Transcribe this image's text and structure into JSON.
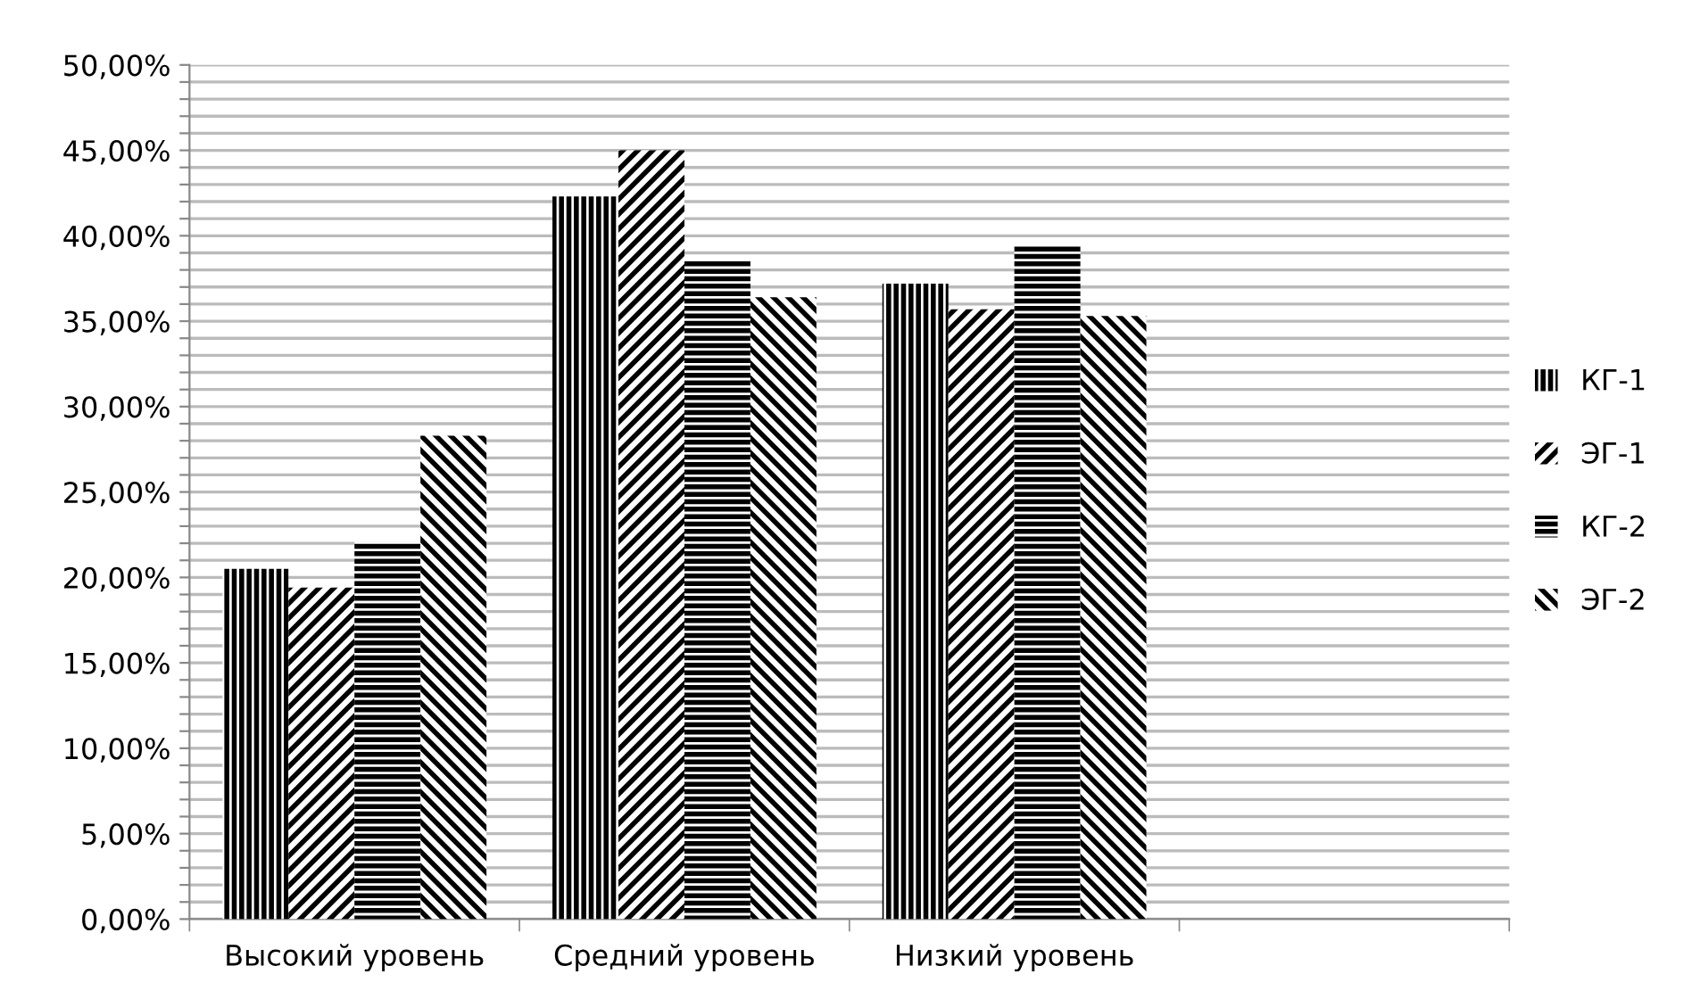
{
  "chart_data": {
    "type": "bar",
    "categories": [
      "Высокий уровень",
      "Средний уровень",
      "Низкий уровень",
      null
    ],
    "series": [
      {
        "name": "КГ-1",
        "color": "#000000",
        "values": [
          20.5,
          42.3,
          37.2,
          null
        ]
      },
      {
        "name": "ЭГ-1",
        "color": "#000000",
        "values": [
          19.4,
          45.0,
          35.7,
          null
        ]
      },
      {
        "name": "КГ-2",
        "color": "#000000",
        "values": [
          22.1,
          38.6,
          39.4,
          null
        ]
      },
      {
        "name": "ЭГ-2",
        "color": "#000000",
        "values": [
          28.3,
          36.4,
          35.3,
          null
        ]
      }
    ],
    "ylim": [
      0,
      50
    ],
    "yticks": [
      {
        "value": 0,
        "label": "0,00%"
      },
      {
        "value": 1,
        "label": null
      },
      {
        "value": 2,
        "label": null
      },
      {
        "value": 3,
        "label": null
      },
      {
        "value": 4,
        "label": null
      },
      {
        "value": 5,
        "label": "5,00%"
      },
      {
        "value": 6,
        "label": null
      },
      {
        "value": 7,
        "label": null
      },
      {
        "value": 8,
        "label": null
      },
      {
        "value": 9,
        "label": null
      },
      {
        "value": 10,
        "label": "10,00%"
      },
      {
        "value": 11,
        "label": null
      },
      {
        "value": 12,
        "label": null
      },
      {
        "value": 13,
        "label": null
      },
      {
        "value": 14,
        "label": null
      },
      {
        "value": 15,
        "label": "15,00%"
      },
      {
        "value": 16,
        "label": null
      },
      {
        "value": 17,
        "label": null
      },
      {
        "value": 18,
        "label": null
      },
      {
        "value": 19,
        "label": null
      },
      {
        "value": 20,
        "label": "20,00%"
      },
      {
        "value": 21,
        "label": null
      },
      {
        "value": 22,
        "label": null
      },
      {
        "value": 23,
        "label": null
      },
      {
        "value": 24,
        "label": null
      },
      {
        "value": 25,
        "label": "25,00%"
      },
      {
        "value": 26,
        "label": null
      },
      {
        "value": 27,
        "label": null
      },
      {
        "value": 28,
        "label": null
      },
      {
        "value": 29,
        "label": null
      },
      {
        "value": 30,
        "label": "30,00%"
      },
      {
        "value": 31,
        "label": null
      },
      {
        "value": 32,
        "label": null
      },
      {
        "value": 33,
        "label": null
      },
      {
        "value": 34,
        "label": null
      },
      {
        "value": 35,
        "label": "35,00%"
      },
      {
        "value": 36,
        "label": null
      },
      {
        "value": 37,
        "label": null
      },
      {
        "value": 38,
        "label": null
      },
      {
        "value": 39,
        "label": null
      },
      {
        "value": 40,
        "label": "40,00%"
      },
      {
        "value": 41,
        "label": null
      },
      {
        "value": 42,
        "label": null
      },
      {
        "value": 43,
        "label": null
      },
      {
        "value": 44,
        "label": null
      },
      {
        "value": 45,
        "label": "45,00%"
      },
      {
        "value": 46,
        "label": null
      },
      {
        "value": 47,
        "label": null
      },
      {
        "value": 48,
        "label": null
      },
      {
        "value": 49,
        "label": null
      },
      {
        "value": 50,
        "label": "50,00%"
      }
    ],
    "grid": "y",
    "legend": "right"
  }
}
